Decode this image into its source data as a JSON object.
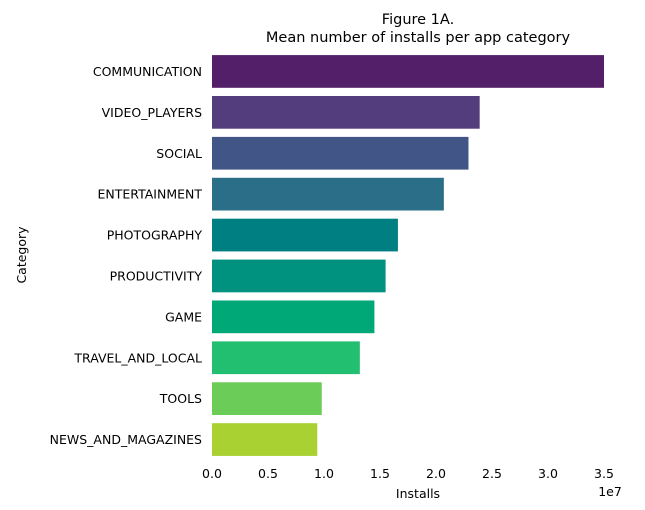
{
  "chart_data": {
    "type": "bar",
    "orientation": "horizontal",
    "title_line1": "Figure 1A.",
    "title_line2": "Mean number of installs per app category",
    "xlabel": "Installs",
    "ylabel": "Category",
    "x_offset_label": "1e7",
    "x_ticks": [
      0.0,
      0.5,
      1.0,
      1.5,
      2.0,
      2.5,
      3.0,
      3.5
    ],
    "x_tick_labels": [
      "0.0",
      "0.5",
      "1.0",
      "1.5",
      "2.0",
      "2.5",
      "3.0",
      "3.5"
    ],
    "xlim": [
      0,
      3.5
    ],
    "grid": false,
    "categories": [
      "COMMUNICATION",
      "VIDEO_PLAYERS",
      "SOCIAL",
      "ENTERTAINMENT",
      "PHOTOGRAPHY",
      "PRODUCTIVITY",
      "GAME",
      "TRAVEL_AND_LOCAL",
      "TOOLS",
      "NEWS_AND_MAGAZINES"
    ],
    "values": [
      35000000,
      23900000,
      22900000,
      20700000,
      16600000,
      15500000,
      14500000,
      13200000,
      9800000,
      9400000
    ],
    "colors": [
      "#541f69",
      "#533d7c",
      "#415687",
      "#2a6e88",
      "#007f82",
      "#00917f",
      "#00a777",
      "#22bf71",
      "#6ccc58",
      "#a9d131"
    ]
  }
}
